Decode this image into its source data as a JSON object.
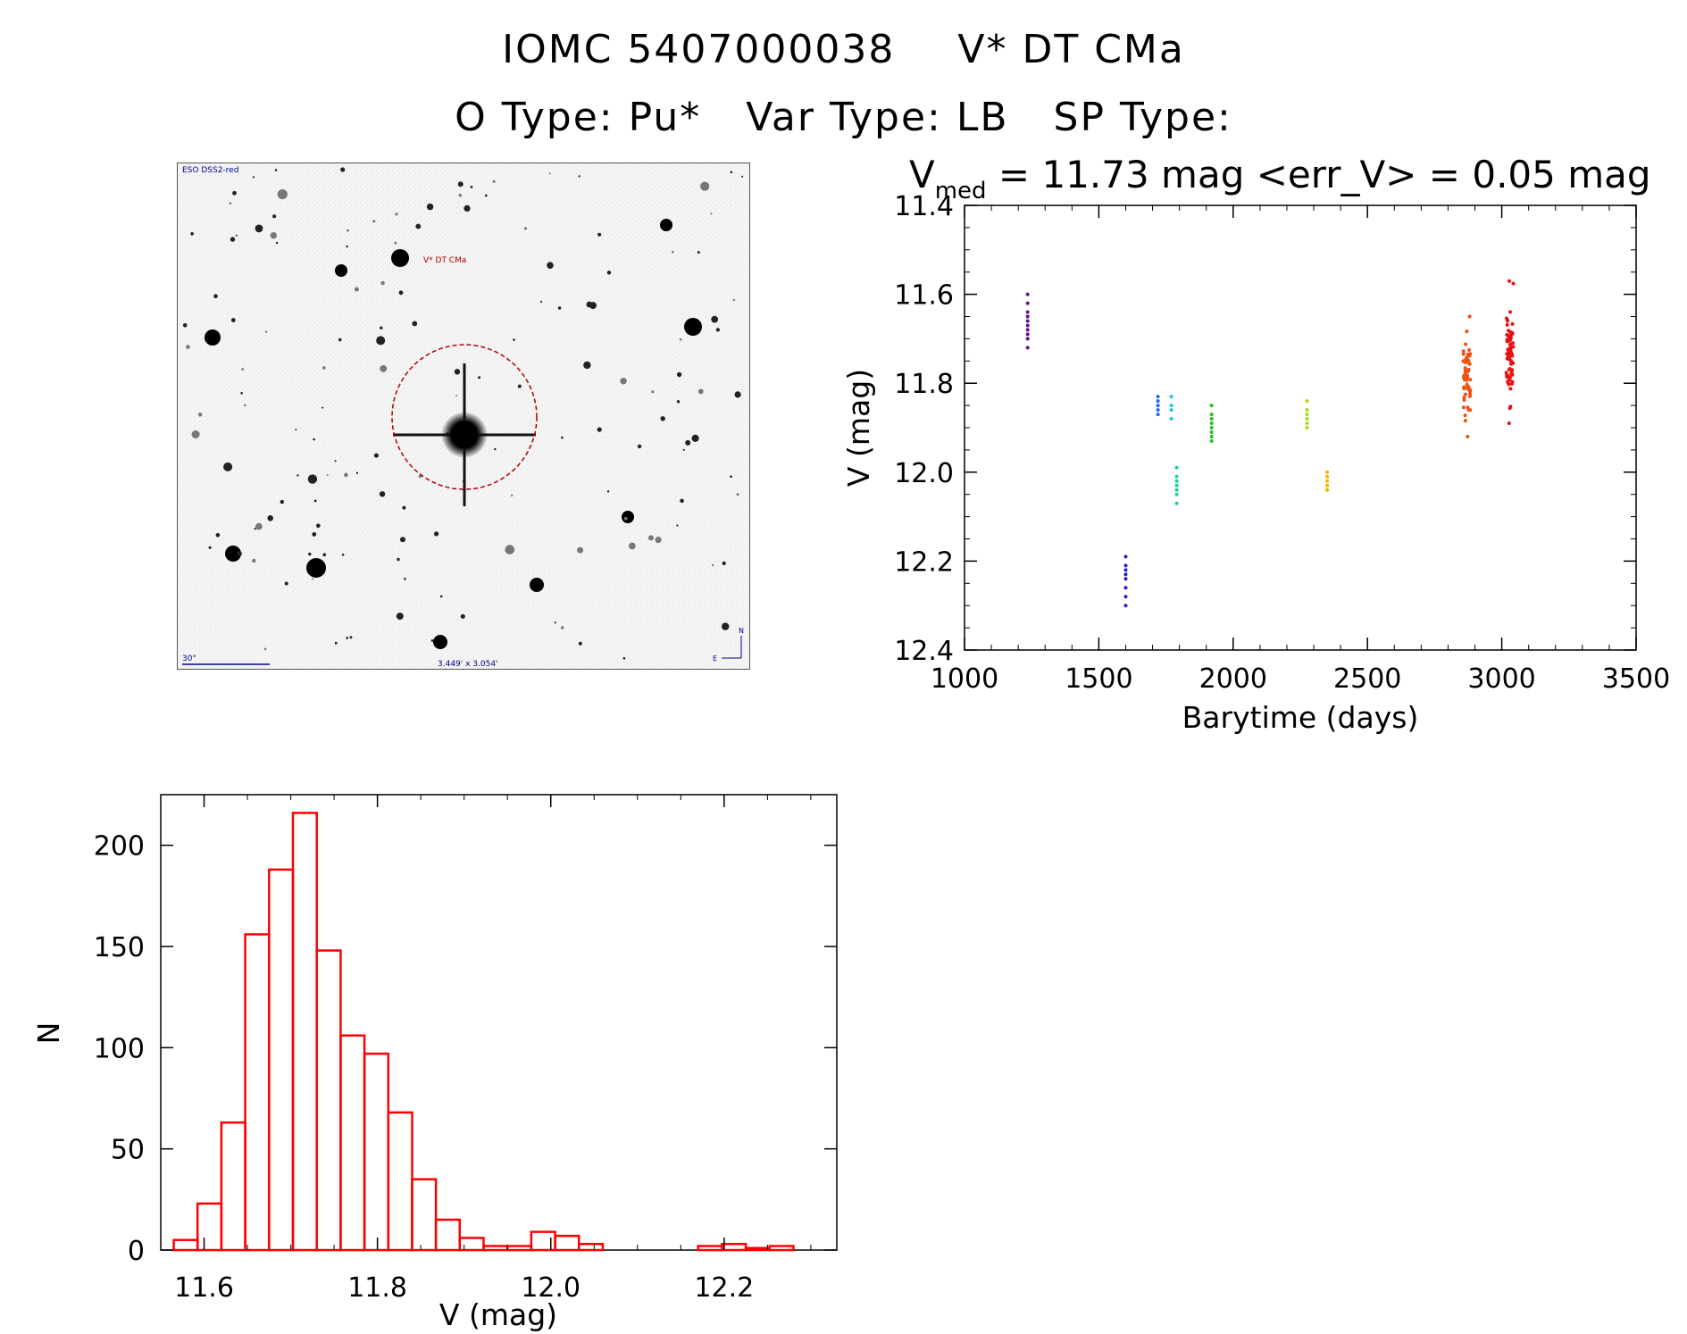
{
  "header": {
    "object_id": "IOMC 5407000038",
    "object_name": "V* DT CMa",
    "o_type": "O Type: Pu*",
    "var_type": "Var Type: LB",
    "sp_type": "SP Type:"
  },
  "sky_image": {
    "survey_label": "ESO DSS2-red",
    "target_label": "V* DT CMa",
    "scale_label": "30\"",
    "size_label": "3.449' x 3.054'",
    "compass_north": "N",
    "compass_east": "E"
  },
  "chart_data": [
    {
      "type": "scatter",
      "title_parts": {
        "v": "V",
        "sub": "med",
        "rest": " = 11.73 mag <err_V> = 0.05 mag"
      },
      "xlabel": "Barytime (days)",
      "ylabel": "V (mag)",
      "xlim": [
        1000,
        3500
      ],
      "ylim": [
        12.4,
        11.4
      ],
      "y_inverted": true,
      "xticks": [
        1000,
        1500,
        2000,
        2500,
        3000,
        3500
      ],
      "yticks": [
        "11.4",
        "11.6",
        "11.8",
        "12.0",
        "12.2",
        "12.4"
      ],
      "groups": [
        {
          "x": 1235,
          "color": "#6a0a8a",
          "y": [
            11.6,
            11.62,
            11.64,
            11.65,
            11.66,
            11.67,
            11.68,
            11.69,
            11.7,
            11.72
          ]
        },
        {
          "x": 1600,
          "color": "#2020cc",
          "y": [
            12.19,
            12.21,
            12.22,
            12.23,
            12.24,
            12.26,
            12.28,
            12.3
          ]
        },
        {
          "x": 1720,
          "color": "#1a6aff",
          "y": [
            11.83,
            11.84,
            11.85,
            11.86,
            11.87
          ]
        },
        {
          "x": 1770,
          "color": "#10c8e8",
          "y": [
            11.83,
            11.85,
            11.86,
            11.88
          ]
        },
        {
          "x": 1790,
          "color": "#10d890",
          "y": [
            11.99,
            12.01,
            12.02,
            12.03,
            12.04,
            12.05,
            12.07
          ]
        },
        {
          "x": 1920,
          "color": "#20c020",
          "y": [
            11.85,
            11.87,
            11.88,
            11.89,
            11.9,
            11.91,
            11.92,
            11.93
          ]
        },
        {
          "x": 2275,
          "color": "#a0e010",
          "y": [
            11.84,
            11.86,
            11.87,
            11.88,
            11.89,
            11.9
          ]
        },
        {
          "x": 2350,
          "color": "#f0b400",
          "y": [
            12.0,
            12.01,
            12.02,
            12.03,
            12.04
          ]
        },
        {
          "x": 2870,
          "color": "#f05010",
          "ymin": 11.65,
          "ymax": 11.92,
          "n": 60
        },
        {
          "x": 3030,
          "color": "#e81010",
          "ymin": 11.57,
          "ymax": 11.89,
          "n": 70
        }
      ]
    },
    {
      "type": "bar",
      "subtype": "histogram",
      "xlabel": "V (mag)",
      "ylabel": "N",
      "xlim": [
        11.55,
        12.33
      ],
      "ylim": [
        0,
        225
      ],
      "xticks": [
        "11.6",
        "11.8",
        "12.0",
        "12.2"
      ],
      "yticks": [
        "0",
        "50",
        "100",
        "150",
        "200"
      ],
      "bin_width": 0.0275,
      "bin_start": 11.565,
      "counts": [
        5,
        23,
        63,
        156,
        188,
        216,
        148,
        106,
        97,
        68,
        35,
        15,
        6,
        2,
        2,
        9,
        7,
        3,
        0,
        0,
        0,
        0,
        2,
        3,
        1,
        2
      ],
      "bar_color": "#ff0000"
    }
  ]
}
